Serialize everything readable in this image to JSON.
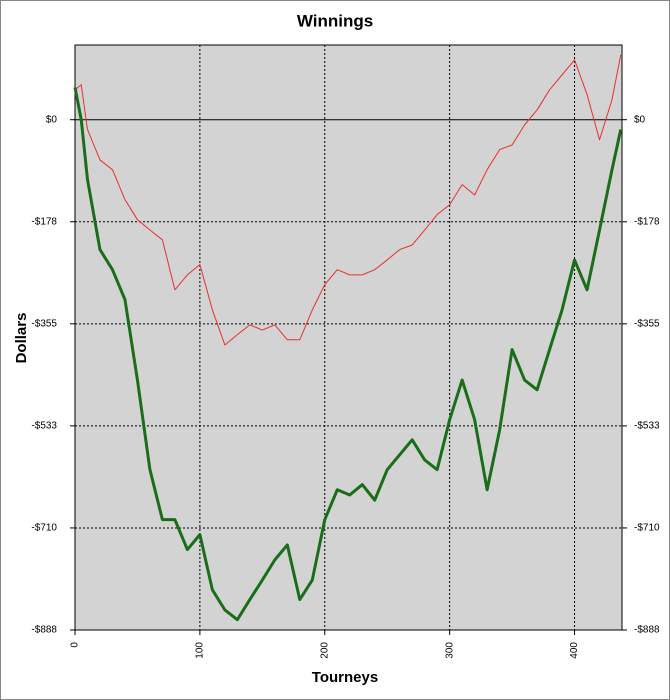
{
  "chart_data": {
    "type": "line",
    "title": "Winnings",
    "x_label": "Tourneys",
    "y_label": "Dollars",
    "x": [
      0,
      5,
      10,
      20,
      30,
      40,
      50,
      60,
      70,
      80,
      90,
      100,
      110,
      120,
      130,
      140,
      150,
      160,
      170,
      180,
      190,
      200,
      210,
      220,
      230,
      240,
      250,
      260,
      270,
      280,
      290,
      300,
      310,
      320,
      330,
      340,
      350,
      360,
      370,
      380,
      390,
      400,
      410,
      420,
      430,
      437
    ],
    "series": [
      {
        "color": "#e83030",
        "width": 1,
        "values": [
          52,
          61,
          -17,
          -70,
          -87,
          -139,
          -174,
          -192,
          -209,
          -296,
          -270,
          -252,
          -331,
          -392,
          -374,
          -357,
          -366,
          -357,
          -383,
          -383,
          -331,
          -287,
          -261,
          -270,
          -270,
          -261,
          -244,
          -226,
          -218,
          -192,
          -165,
          -148,
          -113,
          -131,
          -87,
          -52,
          -44,
          -9,
          17,
          52,
          78,
          104,
          44,
          -35,
          35,
          113
        ]
      },
      {
        "color": "#1a6e1a",
        "width": 3,
        "values": [
          56,
          0,
          -104,
          -226,
          -261,
          -313,
          -453,
          -609,
          -696,
          -696,
          -748,
          -722,
          -818,
          -853,
          -870,
          -835,
          -801,
          -766,
          -740,
          -835,
          -801,
          -696,
          -644,
          -653,
          -635,
          -662,
          -609,
          -583,
          -557,
          -592,
          -609,
          -522,
          -453,
          -522,
          -644,
          -540,
          -400,
          -453,
          -470,
          -400,
          -331,
          -244,
          -296,
          -192,
          -87,
          -17
        ]
      }
    ],
    "xlim": [
      0,
      438
    ],
    "xticks": [
      0,
      100,
      200,
      300,
      400
    ],
    "ylim": [
      -888,
      130
    ],
    "yticks": [
      {
        "value": 0,
        "label": "$0"
      },
      {
        "value": -177.6,
        "label": "-$178"
      },
      {
        "value": -355.2,
        "label": "-$355"
      },
      {
        "value": -532.8,
        "label": "-$533"
      },
      {
        "value": -710.4,
        "label": "-$710"
      },
      {
        "value": -888,
        "label": "-$888"
      }
    ],
    "grid": true,
    "background": "#d3d3d3"
  }
}
